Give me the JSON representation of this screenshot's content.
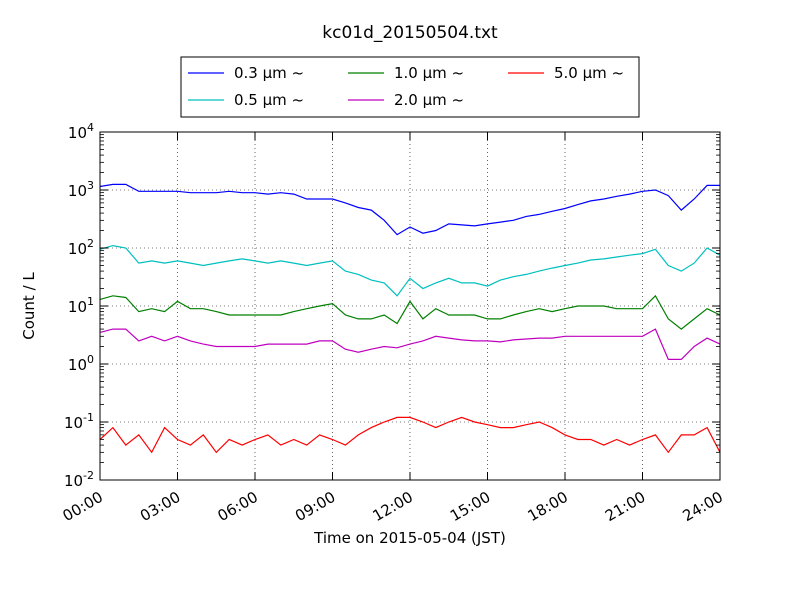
{
  "chart_data": {
    "type": "line",
    "title": "kc01d_20150504.txt",
    "xlabel": "Time on 2015-05-04 (JST)",
    "ylabel": "Count / L",
    "xlim": [
      0,
      24
    ],
    "ylim": [
      0.01,
      10000
    ],
    "yscale": "log",
    "grid": true,
    "legend_position": "top-center",
    "x_ticks": [
      "00:00",
      "03:00",
      "06:00",
      "09:00",
      "12:00",
      "15:00",
      "18:00",
      "21:00",
      "24:00"
    ],
    "y_ticks": [
      {
        "base": "10",
        "exp": "-2"
      },
      {
        "base": "10",
        "exp": "-1"
      },
      {
        "base": "10",
        "exp": "0"
      },
      {
        "base": "10",
        "exp": "1"
      },
      {
        "base": "10",
        "exp": "2"
      },
      {
        "base": "10",
        "exp": "3"
      },
      {
        "base": "10",
        "exp": "4"
      }
    ],
    "x_hours": [
      0,
      0.5,
      1,
      1.5,
      2,
      2.5,
      3,
      3.5,
      4,
      4.5,
      5,
      5.5,
      6,
      6.5,
      7,
      7.5,
      8,
      8.5,
      9,
      9.5,
      10,
      10.5,
      11,
      11.5,
      12,
      12.5,
      13,
      13.5,
      14,
      14.5,
      15,
      15.5,
      16,
      16.5,
      17,
      17.5,
      18,
      18.5,
      19,
      19.5,
      20,
      20.5,
      21,
      21.5,
      22,
      22.5,
      23,
      23.5,
      24
    ],
    "series": [
      {
        "name": "0.3 μm ~",
        "color": "#0000ff",
        "values": [
          1150,
          1250,
          1250,
          950,
          950,
          950,
          950,
          900,
          900,
          900,
          950,
          900,
          900,
          850,
          900,
          850,
          700,
          700,
          700,
          600,
          500,
          450,
          300,
          170,
          230,
          180,
          200,
          260,
          250,
          240,
          260,
          280,
          300,
          350,
          380,
          430,
          480,
          560,
          650,
          700,
          780,
          850,
          950,
          1000,
          800,
          450,
          700,
          1200,
          1200
        ]
      },
      {
        "name": "0.5 μm ~",
        "color": "#00bfbf",
        "values": [
          95,
          110,
          100,
          55,
          60,
          55,
          60,
          55,
          50,
          55,
          60,
          65,
          60,
          55,
          60,
          55,
          50,
          55,
          60,
          40,
          35,
          28,
          25,
          15,
          30,
          20,
          25,
          30,
          25,
          25,
          22,
          28,
          32,
          35,
          40,
          45,
          50,
          55,
          62,
          65,
          70,
          75,
          80,
          95,
          50,
          40,
          55,
          100,
          75
        ]
      },
      {
        "name": "1.0 μm ~",
        "color": "#008000",
        "values": [
          13,
          15,
          14,
          8,
          9,
          8,
          12,
          9,
          9,
          8,
          7,
          7,
          7,
          7,
          7,
          8,
          9,
          10,
          11,
          7,
          6,
          6,
          7,
          5,
          12,
          6,
          9,
          7,
          7,
          7,
          6,
          6,
          7,
          8,
          9,
          8,
          9,
          10,
          10,
          10,
          9,
          9,
          9,
          15,
          6,
          4,
          6,
          9,
          7
        ]
      },
      {
        "name": "2.0 μm ~",
        "color": "#bf00bf",
        "values": [
          3.5,
          4,
          4,
          2.5,
          3,
          2.5,
          3,
          2.5,
          2.2,
          2,
          2,
          2,
          2,
          2.2,
          2.2,
          2.2,
          2.2,
          2.5,
          2.5,
          1.8,
          1.6,
          1.8,
          2,
          1.9,
          2.2,
          2.5,
          3,
          2.8,
          2.6,
          2.5,
          2.5,
          2.4,
          2.6,
          2.7,
          2.8,
          2.8,
          3,
          3,
          3,
          3,
          3,
          3,
          3,
          4,
          1.2,
          1.2,
          2,
          2.8,
          2.2
        ]
      },
      {
        "name": "5.0 μm ~",
        "color": "#ff0000",
        "values": [
          0.05,
          0.08,
          0.04,
          0.06,
          0.03,
          0.08,
          0.05,
          0.04,
          0.06,
          0.03,
          0.05,
          0.04,
          0.05,
          0.06,
          0.04,
          0.05,
          0.04,
          0.06,
          0.05,
          0.04,
          0.06,
          0.08,
          0.1,
          0.12,
          0.12,
          0.1,
          0.08,
          0.1,
          0.12,
          0.1,
          0.09,
          0.08,
          0.08,
          0.09,
          0.1,
          0.08,
          0.06,
          0.05,
          0.05,
          0.04,
          0.05,
          0.04,
          0.05,
          0.06,
          0.03,
          0.06,
          0.06,
          0.08,
          0.03
        ]
      }
    ]
  }
}
